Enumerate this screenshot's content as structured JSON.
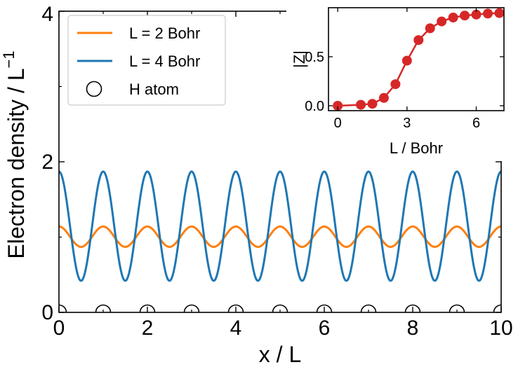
{
  "chart_data": [
    {
      "type": "line",
      "xlabel": "x / L",
      "ylabel": "Electron density / L",
      "ylabel_superscript": "−1",
      "xlim": [
        0,
        10
      ],
      "ylim": [
        0,
        4
      ],
      "xticks": [
        0,
        2,
        4,
        6,
        8,
        10
      ],
      "yticks": [
        0,
        2,
        4
      ],
      "xtick_labels": [
        "0",
        "2",
        "4",
        "6",
        "8",
        "10"
      ],
      "ytick_labels": [
        "0",
        "2",
        "4"
      ],
      "legend_location": "top-left",
      "series": [
        {
          "name": "L = 2 Bohr",
          "color": "#ff7f0e",
          "function": "periodic",
          "period": 1,
          "max": 1.14,
          "min": 0.87,
          "max_at_integer_x": true
        },
        {
          "name": "L = 4 Bohr",
          "color": "#1f77b4",
          "function": "periodic",
          "period": 1,
          "max": 1.87,
          "min": 0.42,
          "max_at_integer_x": true
        },
        {
          "name": "H atom",
          "marker": "open-circle",
          "color": "#000000",
          "x": [
            0,
            1,
            2,
            3,
            4,
            5,
            6,
            7,
            8,
            9,
            10
          ],
          "y": [
            0,
            0,
            0,
            0,
            0,
            0,
            0,
            0,
            0,
            0,
            0
          ]
        }
      ]
    },
    {
      "type": "line",
      "xlabel": "L / Bohr",
      "ylabel": "|Z|",
      "xlim": [
        -0.4,
        7.2
      ],
      "ylim": [
        -0.05,
        1.0
      ],
      "xticks": [
        0,
        3,
        6
      ],
      "yticks": [
        0.0,
        0.5
      ],
      "xtick_labels": [
        "0",
        "3",
        "6"
      ],
      "ytick_labels": [
        "0.0",
        "0.5"
      ],
      "series": [
        {
          "name": "|Z|",
          "color": "#d62728",
          "marker": "filled-circle",
          "x": [
            0.0,
            1.0,
            1.5,
            2.0,
            2.5,
            3.0,
            3.5,
            4.0,
            4.5,
            5.0,
            5.5,
            6.0,
            6.5,
            7.0
          ],
          "y": [
            0.0,
            0.01,
            0.02,
            0.08,
            0.22,
            0.46,
            0.67,
            0.79,
            0.86,
            0.9,
            0.92,
            0.93,
            0.94,
            0.945
          ]
        }
      ]
    }
  ]
}
